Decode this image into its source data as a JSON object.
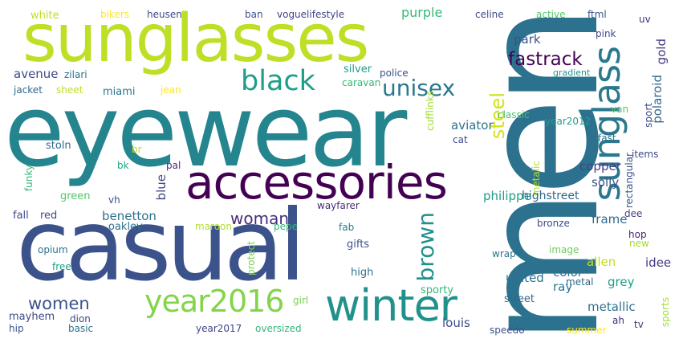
{
  "words": [
    {
      "text": "eyewear",
      "color": "#25858e"
    },
    {
      "text": "men",
      "color": "#2c728e"
    },
    {
      "text": "sunglasses",
      "color": "#bddf26"
    },
    {
      "text": "casual",
      "color": "#3b528b"
    },
    {
      "text": "accessories",
      "color": "#440154"
    },
    {
      "text": "winter",
      "color": "#21918c"
    },
    {
      "text": "sunglass",
      "color": "#2a788e"
    },
    {
      "text": "year2016",
      "color": "#84d44b"
    },
    {
      "text": "black",
      "color": "#1f9e89"
    },
    {
      "text": "unisex",
      "color": "#2a788e"
    },
    {
      "text": "brown",
      "color": "#21918c"
    },
    {
      "text": "woman",
      "color": "#472d7b"
    },
    {
      "text": "women",
      "color": "#3b528b"
    },
    {
      "text": "fastrack",
      "color": "#440154"
    },
    {
      "text": "steel",
      "color": "#d2e21b"
    },
    {
      "text": "white",
      "color": "#bddf26"
    },
    {
      "text": "bikers",
      "color": "#fde725"
    },
    {
      "text": "heusen",
      "color": "#3e4a89"
    },
    {
      "text": "ban",
      "color": "#3b528b"
    },
    {
      "text": "voguelifestyle",
      "color": "#414487"
    },
    {
      "text": "purple",
      "color": "#35b779"
    },
    {
      "text": "celine",
      "color": "#3e4a89"
    },
    {
      "text": "active",
      "color": "#54c568"
    },
    {
      "text": "ftml",
      "color": "#3b528b"
    },
    {
      "text": "uv",
      "color": "#472d7b"
    },
    {
      "text": "pink",
      "color": "#3e4a89"
    },
    {
      "text": "gold",
      "color": "#453781"
    },
    {
      "text": "park",
      "color": "#3b528b"
    },
    {
      "text": "gradient",
      "color": "#21918c"
    },
    {
      "text": "avenue",
      "color": "#3e4a89"
    },
    {
      "text": "zilari",
      "color": "#2c728e"
    },
    {
      "text": "silver",
      "color": "#1f9e89"
    },
    {
      "text": "police",
      "color": "#3b528b"
    },
    {
      "text": "caravan",
      "color": "#35b779"
    },
    {
      "text": "jacket",
      "color": "#31688e"
    },
    {
      "text": "sheet",
      "color": "#bddf26"
    },
    {
      "text": "jean",
      "color": "#fde725"
    },
    {
      "text": "miami",
      "color": "#2a788e"
    },
    {
      "text": "polaroid",
      "color": "#31688e"
    },
    {
      "text": "aviator",
      "color": "#2c728e"
    },
    {
      "text": "cufflinks",
      "color": "#a5db36"
    },
    {
      "text": "classic",
      "color": "#4ac16d"
    },
    {
      "text": "year2012",
      "color": "#1f9e89"
    },
    {
      "text": "van",
      "color": "#54c568"
    },
    {
      "text": "sport",
      "color": "#3e4a89"
    },
    {
      "text": "cat",
      "color": "#3e4a89"
    },
    {
      "text": "lp",
      "color": "#2c728e"
    },
    {
      "text": "fast",
      "color": "#2c728e"
    },
    {
      "text": "stoln",
      "color": "#31688e"
    },
    {
      "text": "br",
      "color": "#bddf26"
    },
    {
      "text": "items",
      "color": "#3e4a89"
    },
    {
      "text": "copper",
      "color": "#433e85"
    },
    {
      "text": "funky",
      "color": "#35b779"
    },
    {
      "text": "bk",
      "color": "#20a486"
    },
    {
      "text": "pal",
      "color": "#472d7b"
    },
    {
      "text": "blue",
      "color": "#3e4a89"
    },
    {
      "text": "solly",
      "color": "#3b528b"
    },
    {
      "text": "metalic",
      "color": "#b5de2b"
    },
    {
      "text": "green",
      "color": "#54c568"
    },
    {
      "text": "vh",
      "color": "#3b528b"
    },
    {
      "text": "rectangular",
      "color": "#3b528b"
    },
    {
      "text": "fall",
      "color": "#3e4a89"
    },
    {
      "text": "red",
      "color": "#3e4a89"
    },
    {
      "text": "benetton",
      "color": "#2c728e"
    },
    {
      "text": "wayfarer",
      "color": "#472d7b"
    },
    {
      "text": "philippe",
      "color": "#1f9e89"
    },
    {
      "text": "highstreet",
      "color": "#31688e"
    },
    {
      "text": "dee",
      "color": "#433e85"
    },
    {
      "text": "oakley",
      "color": "#2c728e"
    },
    {
      "text": "maroon",
      "color": "#b5de2b"
    },
    {
      "text": "pepe",
      "color": "#35b779"
    },
    {
      "text": "fab",
      "color": "#2a788e"
    },
    {
      "text": "bronze",
      "color": "#3e4a89"
    },
    {
      "text": "frame",
      "color": "#31688e"
    },
    {
      "text": "hop",
      "color": "#481f70"
    },
    {
      "text": "new",
      "color": "#a5db36"
    },
    {
      "text": "opium",
      "color": "#2c728e"
    },
    {
      "text": "protect",
      "color": "#7ad151"
    },
    {
      "text": "gifts",
      "color": "#3b528b"
    },
    {
      "text": "allen",
      "color": "#c2df23"
    },
    {
      "text": "idee",
      "color": "#443983"
    },
    {
      "text": "wrap",
      "color": "#2c728e"
    },
    {
      "text": "image",
      "color": "#6ccd5a"
    },
    {
      "text": "color",
      "color": "#2c728e"
    },
    {
      "text": "free",
      "color": "#1f9e89"
    },
    {
      "text": "high",
      "color": "#2c728e"
    },
    {
      "text": "united",
      "color": "#2c728e"
    },
    {
      "text": "ray",
      "color": "#2c728e"
    },
    {
      "text": "grey",
      "color": "#1f9e89"
    },
    {
      "text": "sporty",
      "color": "#35b779"
    },
    {
      "text": "metal",
      "color": "#31688e"
    },
    {
      "text": "metallic",
      "color": "#2c728e"
    },
    {
      "text": "street",
      "color": "#31688e"
    },
    {
      "text": "mayhem",
      "color": "#3e4a89"
    },
    {
      "text": "girl",
      "color": "#7ad151"
    },
    {
      "text": "dion",
      "color": "#3e4a89"
    },
    {
      "text": "hip",
      "color": "#3b528b"
    },
    {
      "text": "basic",
      "color": "#2c728e"
    },
    {
      "text": "year2017",
      "color": "#414487"
    },
    {
      "text": "oversized",
      "color": "#35b779"
    },
    {
      "text": "louis",
      "color": "#3e4a89"
    },
    {
      "text": "speedo",
      "color": "#3b528b"
    },
    {
      "text": "summer",
      "color": "#fde725"
    },
    {
      "text": "ah",
      "color": "#472d7b"
    },
    {
      "text": "tv",
      "color": "#46327e"
    },
    {
      "text": "sports",
      "color": "#a5db36"
    }
  ]
}
